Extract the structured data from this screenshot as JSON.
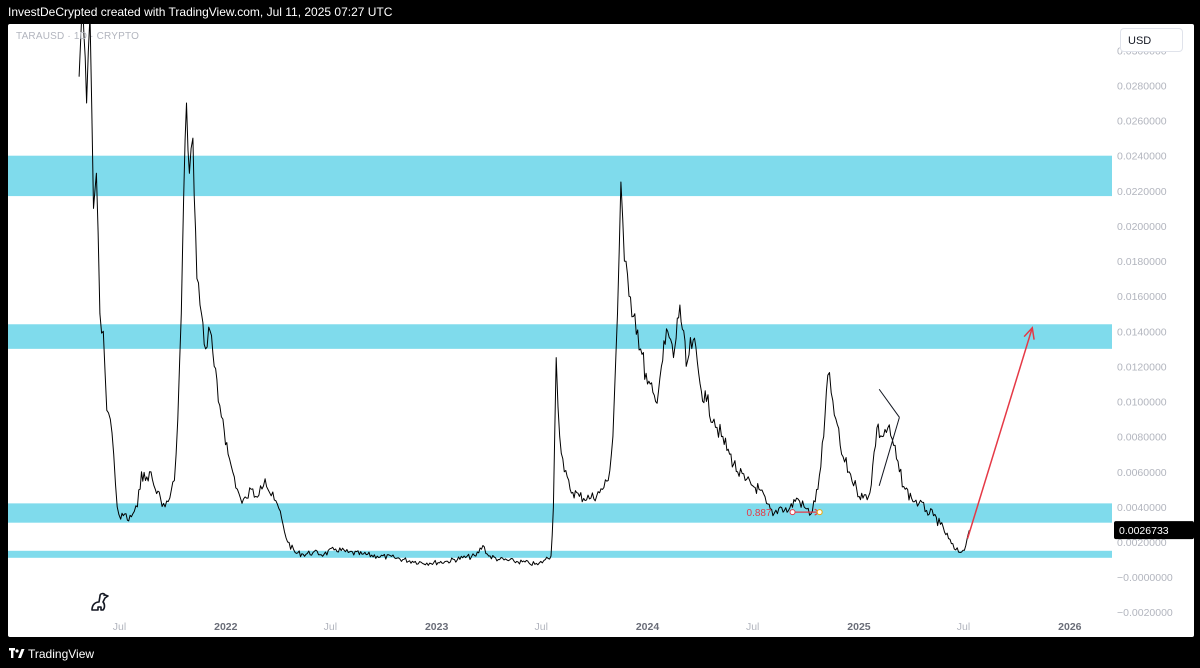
{
  "header": {
    "attribution": "InvestDeCrypted created with TradingView.com, Jul 11, 2025 07:27 UTC"
  },
  "symbol": {
    "label": "TARAUSD · 1D · CRYPTO"
  },
  "currency_button": "USD",
  "footer": {
    "brand": "TradingView"
  },
  "colors": {
    "zone_fill": "#7fdbec",
    "price_line": "#000000",
    "projection_arrow": "#e53946",
    "annotation": "#e53946"
  },
  "chart_data": {
    "type": "line",
    "title": "",
    "symbol": "TARAUSD",
    "interval": "1D",
    "currency": "USD",
    "price_axis": {
      "ticks": [
        0.03,
        0.028,
        0.026,
        0.024,
        0.022,
        0.02,
        0.018,
        0.016,
        0.014,
        0.012,
        0.01,
        0.008,
        0.006,
        0.004,
        0.002,
        0.0,
        -0.002
      ],
      "tick_labels": [
        "0.0300000",
        "0.0280000",
        "0.0260000",
        "0.0240000",
        "0.0220000",
        "0.0200000",
        "0.0180000",
        "0.0160000",
        "0.0140000",
        "0.0120000",
        "0.0100000",
        "0.0080000",
        "0.0060000",
        "0.0040000",
        "0.0020000",
        "−0.0000000",
        "−0.0020000"
      ],
      "range": [
        -0.0021,
        0.0315
      ]
    },
    "time_axis": {
      "ticks": [
        {
          "label": "Jul",
          "date": "2021-07-01",
          "bold": false
        },
        {
          "label": "2022",
          "date": "2022-01-01",
          "bold": true
        },
        {
          "label": "Jul",
          "date": "2022-07-01",
          "bold": false
        },
        {
          "label": "2023",
          "date": "2023-01-01",
          "bold": true
        },
        {
          "label": "Jul",
          "date": "2023-07-01",
          "bold": false
        },
        {
          "label": "2024",
          "date": "2024-01-01",
          "bold": true
        },
        {
          "label": "Jul",
          "date": "2024-07-01",
          "bold": false
        },
        {
          "label": "2025",
          "date": "2025-01-01",
          "bold": true
        },
        {
          "label": "Jul",
          "date": "2025-07-01",
          "bold": false
        },
        {
          "label": "2026",
          "date": "2026-01-01",
          "bold": true
        }
      ],
      "range": [
        "2020-12-20",
        "2026-03-15"
      ]
    },
    "last_price": {
      "value": 0.0026733,
      "label": "0.0026733"
    },
    "zones": [
      {
        "low": 0.0217,
        "high": 0.024
      },
      {
        "low": 0.013,
        "high": 0.0144
      },
      {
        "low": 0.0031,
        "high": 0.0042
      },
      {
        "low": 0.0011,
        "high": 0.0015
      }
    ],
    "series": [
      {
        "points": [
          [
            "2021-04-22",
            0.0285
          ],
          [
            "2021-04-28",
            0.033
          ],
          [
            "2021-05-05",
            0.027
          ],
          [
            "2021-05-11",
            0.032
          ],
          [
            "2021-05-17",
            0.021
          ],
          [
            "2021-05-22",
            0.023
          ],
          [
            "2021-05-28",
            0.015
          ],
          [
            "2021-06-03",
            0.014
          ],
          [
            "2021-06-09",
            0.0095
          ],
          [
            "2021-06-15",
            0.009
          ],
          [
            "2021-06-21",
            0.007
          ],
          [
            "2021-06-27",
            0.004
          ],
          [
            "2021-07-03",
            0.0033
          ],
          [
            "2021-07-10",
            0.0036
          ],
          [
            "2021-07-17",
            0.0032
          ],
          [
            "2021-07-24",
            0.0036
          ],
          [
            "2021-08-01",
            0.004
          ],
          [
            "2021-08-08",
            0.006
          ],
          [
            "2021-08-15",
            0.0055
          ],
          [
            "2021-08-22",
            0.006
          ],
          [
            "2021-09-01",
            0.005
          ],
          [
            "2021-09-10",
            0.0045
          ],
          [
            "2021-09-18",
            0.004
          ],
          [
            "2021-09-26",
            0.0045
          ],
          [
            "2021-10-04",
            0.0055
          ],
          [
            "2021-10-10",
            0.009
          ],
          [
            "2021-10-16",
            0.015
          ],
          [
            "2021-10-20",
            0.0215
          ],
          [
            "2021-10-25",
            0.027
          ],
          [
            "2021-10-30",
            0.023
          ],
          [
            "2021-11-05",
            0.025
          ],
          [
            "2021-11-12",
            0.017
          ],
          [
            "2021-11-20",
            0.015
          ],
          [
            "2021-11-27",
            0.013
          ],
          [
            "2021-12-05",
            0.014
          ],
          [
            "2021-12-12",
            0.012
          ],
          [
            "2021-12-19",
            0.01
          ],
          [
            "2021-12-27",
            0.009
          ],
          [
            "2022-01-05",
            0.007
          ],
          [
            "2022-01-13",
            0.006
          ],
          [
            "2022-01-21",
            0.005
          ],
          [
            "2022-01-29",
            0.0042
          ],
          [
            "2022-02-06",
            0.0045
          ],
          [
            "2022-02-14",
            0.005
          ],
          [
            "2022-02-22",
            0.0046
          ],
          [
            "2022-03-02",
            0.0052
          ],
          [
            "2022-03-10",
            0.0056
          ],
          [
            "2022-03-18",
            0.0048
          ],
          [
            "2022-03-26",
            0.0044
          ],
          [
            "2022-04-03",
            0.0039
          ],
          [
            "2022-04-10",
            0.003
          ],
          [
            "2022-04-18",
            0.002
          ],
          [
            "2022-05-01",
            0.0014
          ],
          [
            "2022-05-15",
            0.0013
          ],
          [
            "2022-06-01",
            0.0014
          ],
          [
            "2022-06-20",
            0.0013
          ],
          [
            "2022-07-10",
            0.0016
          ],
          [
            "2022-08-01",
            0.0014
          ],
          [
            "2022-08-25",
            0.0013
          ],
          [
            "2022-09-20",
            0.0012
          ],
          [
            "2022-10-20",
            0.0011
          ],
          [
            "2022-11-20",
            0.0009
          ],
          [
            "2022-12-20",
            0.0008
          ],
          [
            "2023-01-20",
            0.0009
          ],
          [
            "2023-02-15",
            0.0011
          ],
          [
            "2023-03-10",
            0.0012
          ],
          [
            "2023-03-22",
            0.0018
          ],
          [
            "2023-04-01",
            0.0012
          ],
          [
            "2023-04-20",
            0.001
          ],
          [
            "2023-05-15",
            0.0009
          ],
          [
            "2023-06-10",
            0.0008
          ],
          [
            "2023-06-25",
            0.0007
          ],
          [
            "2023-07-08",
            0.001
          ],
          [
            "2023-07-18",
            0.0012
          ],
          [
            "2023-07-22",
            0.004
          ],
          [
            "2023-07-27",
            0.0125
          ],
          [
            "2023-08-02",
            0.008
          ],
          [
            "2023-08-10",
            0.006
          ],
          [
            "2023-08-20",
            0.005
          ],
          [
            "2023-09-05",
            0.0046
          ],
          [
            "2023-09-25",
            0.0045
          ],
          [
            "2023-10-10",
            0.0048
          ],
          [
            "2023-10-25",
            0.0055
          ],
          [
            "2023-11-02",
            0.008
          ],
          [
            "2023-11-10",
            0.015
          ],
          [
            "2023-11-16",
            0.0225
          ],
          [
            "2023-11-22",
            0.018
          ],
          [
            "2023-11-30",
            0.016
          ],
          [
            "2023-12-10",
            0.015
          ],
          [
            "2023-12-20",
            0.013
          ],
          [
            "2024-01-01",
            0.011
          ],
          [
            "2024-01-15",
            0.01
          ],
          [
            "2024-01-25",
            0.012
          ],
          [
            "2024-02-05",
            0.014
          ],
          [
            "2024-02-15",
            0.0125
          ],
          [
            "2024-02-26",
            0.0155
          ],
          [
            "2024-03-08",
            0.012
          ],
          [
            "2024-03-20",
            0.0135
          ],
          [
            "2024-04-01",
            0.011
          ],
          [
            "2024-04-12",
            0.01
          ],
          [
            "2024-04-25",
            0.009
          ],
          [
            "2024-05-08",
            0.008
          ],
          [
            "2024-05-22",
            0.007
          ],
          [
            "2024-06-05",
            0.006
          ],
          [
            "2024-06-18",
            0.0055
          ],
          [
            "2024-07-01",
            0.0052
          ],
          [
            "2024-07-12",
            0.005
          ],
          [
            "2024-07-25",
            0.0042
          ],
          [
            "2024-08-05",
            0.0035
          ],
          [
            "2024-08-18",
            0.004
          ],
          [
            "2024-09-01",
            0.0038
          ],
          [
            "2024-09-15",
            0.0045
          ],
          [
            "2024-09-28",
            0.004
          ],
          [
            "2024-10-10",
            0.0036
          ],
          [
            "2024-10-22",
            0.005
          ],
          [
            "2024-11-01",
            0.008
          ],
          [
            "2024-11-08",
            0.0115
          ],
          [
            "2024-11-14",
            0.0105
          ],
          [
            "2024-11-22",
            0.009
          ],
          [
            "2024-12-02",
            0.007
          ],
          [
            "2024-12-15",
            0.006
          ],
          [
            "2024-12-28",
            0.005
          ],
          [
            "2025-01-08",
            0.0045
          ],
          [
            "2025-01-20",
            0.0048
          ],
          [
            "2025-02-01",
            0.0085
          ],
          [
            "2025-02-10",
            0.008
          ],
          [
            "2025-02-20",
            0.0085
          ],
          [
            "2025-03-02",
            0.0075
          ],
          [
            "2025-03-12",
            0.006
          ],
          [
            "2025-03-22",
            0.005
          ],
          [
            "2025-04-02",
            0.0045
          ],
          [
            "2025-04-15",
            0.0042
          ],
          [
            "2025-04-28",
            0.0038
          ],
          [
            "2025-05-10",
            0.0035
          ],
          [
            "2025-05-22",
            0.003
          ],
          [
            "2025-06-05",
            0.0022
          ],
          [
            "2025-06-15",
            0.0016
          ],
          [
            "2025-06-25",
            0.0014
          ],
          [
            "2025-07-05",
            0.0018
          ],
          [
            "2025-07-11",
            0.0026733
          ]
        ]
      }
    ],
    "annotations": {
      "measure_label": "0.887",
      "measure_from": {
        "date": "2024-09-08",
        "price": 0.0037
      },
      "measure_to": {
        "date": "2024-10-25",
        "price": 0.0037
      },
      "wedge_lines": [
        [
          {
            "date": "2025-02-05",
            "price": 0.0107
          },
          {
            "date": "2025-03-12",
            "price": 0.0091
          }
        ],
        [
          {
            "date": "2025-02-05",
            "price": 0.0052
          },
          {
            "date": "2025-03-12",
            "price": 0.0091
          }
        ]
      ],
      "projection_from": {
        "date": "2025-07-08",
        "price": 0.0022
      },
      "projection_to": {
        "date": "2025-10-28",
        "price": 0.0142
      }
    }
  }
}
